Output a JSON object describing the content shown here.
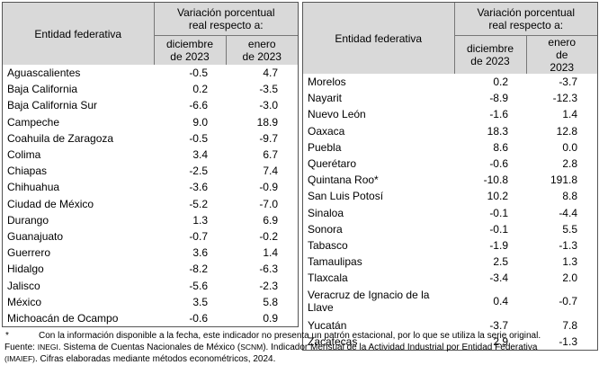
{
  "header": {
    "entity_col": "Entidad federativa",
    "variation_title": "Variación porcentual real respecto a:",
    "col_dec": "diciembre de 2023",
    "col_jan": "enero de 2023"
  },
  "left_rows": [
    {
      "entity": "Aguascalientes",
      "dec": "-0.5",
      "jan": "4.7"
    },
    {
      "entity": "Baja California",
      "dec": "0.2",
      "jan": "-3.5"
    },
    {
      "entity": "Baja California Sur",
      "dec": "-6.6",
      "jan": "-3.0"
    },
    {
      "entity": "Campeche",
      "dec": "9.0",
      "jan": "18.9"
    },
    {
      "entity": "Coahuila de Zaragoza",
      "dec": "-0.5",
      "jan": "-9.7"
    },
    {
      "entity": "Colima",
      "dec": "3.4",
      "jan": "6.7"
    },
    {
      "entity": "Chiapas",
      "dec": "-2.5",
      "jan": "7.4"
    },
    {
      "entity": "Chihuahua",
      "dec": "-3.6",
      "jan": "-0.9"
    },
    {
      "entity": "Ciudad de México",
      "dec": "-5.2",
      "jan": "-7.0"
    },
    {
      "entity": "Durango",
      "dec": "1.3",
      "jan": "6.9"
    },
    {
      "entity": "Guanajuato",
      "dec": "-0.7",
      "jan": "-0.2"
    },
    {
      "entity": "Guerrero",
      "dec": "3.6",
      "jan": "1.4"
    },
    {
      "entity": "Hidalgo",
      "dec": "-8.2",
      "jan": "-6.3"
    },
    {
      "entity": "Jalisco",
      "dec": "-5.6",
      "jan": "-2.3"
    },
    {
      "entity": "México",
      "dec": "3.5",
      "jan": "5.8"
    },
    {
      "entity": "Michoacán de Ocampo",
      "dec": "-0.6",
      "jan": "0.9"
    }
  ],
  "right_rows": [
    {
      "entity": "Morelos",
      "dec": "0.2",
      "jan": "-3.7"
    },
    {
      "entity": "Nayarit",
      "dec": "-8.9",
      "jan": "-12.3"
    },
    {
      "entity": "Nuevo León",
      "dec": "-1.6",
      "jan": "1.4"
    },
    {
      "entity": "Oaxaca",
      "dec": "18.3",
      "jan": "12.8"
    },
    {
      "entity": "Puebla",
      "dec": "8.6",
      "jan": "0.0"
    },
    {
      "entity": "Querétaro",
      "dec": "-0.6",
      "jan": "2.8"
    },
    {
      "entity": "Quintana Roo*",
      "dec": "-10.8",
      "jan": "191.8"
    },
    {
      "entity": "San Luis Potosí",
      "dec": "10.2",
      "jan": "8.8"
    },
    {
      "entity": "Sinaloa",
      "dec": "-0.1",
      "jan": "-4.4"
    },
    {
      "entity": "Sonora",
      "dec": "-0.1",
      "jan": "5.5"
    },
    {
      "entity": "Tabasco",
      "dec": "-1.9",
      "jan": "-1.3"
    },
    {
      "entity": "Tamaulipas",
      "dec": "2.5",
      "jan": "1.3"
    },
    {
      "entity": "Tlaxcala",
      "dec": "-3.4",
      "jan": "2.0"
    },
    {
      "entity": "Veracruz de Ignacio de la Llave",
      "dec": "0.4",
      "jan": "-0.7"
    },
    {
      "entity": "Yucatán",
      "dec": "-3.7",
      "jan": "7.8"
    },
    {
      "entity": "Zacatecas",
      "dec": "2.9",
      "jan": "-1.3"
    }
  ],
  "footnotes": {
    "asterisk_mark": "*",
    "asterisk_text": "Con la información disponible a la fecha, este indicador no presenta un patrón estacional, por lo que se utiliza la serie original.",
    "source_label": "Fuente:",
    "source_inegi": "INEGI",
    "source_text_1": ". Sistema de Cuentas Nacionales de México (",
    "source_scnm": "SCNM",
    "source_text_2": "). Indicador Mensual de la Actividad Industrial por Entidad Federativa",
    "source_imaief": "(IMAIEF)",
    "source_text_3": ". Cifras elaboradas mediante métodos econométricos, 2024."
  }
}
